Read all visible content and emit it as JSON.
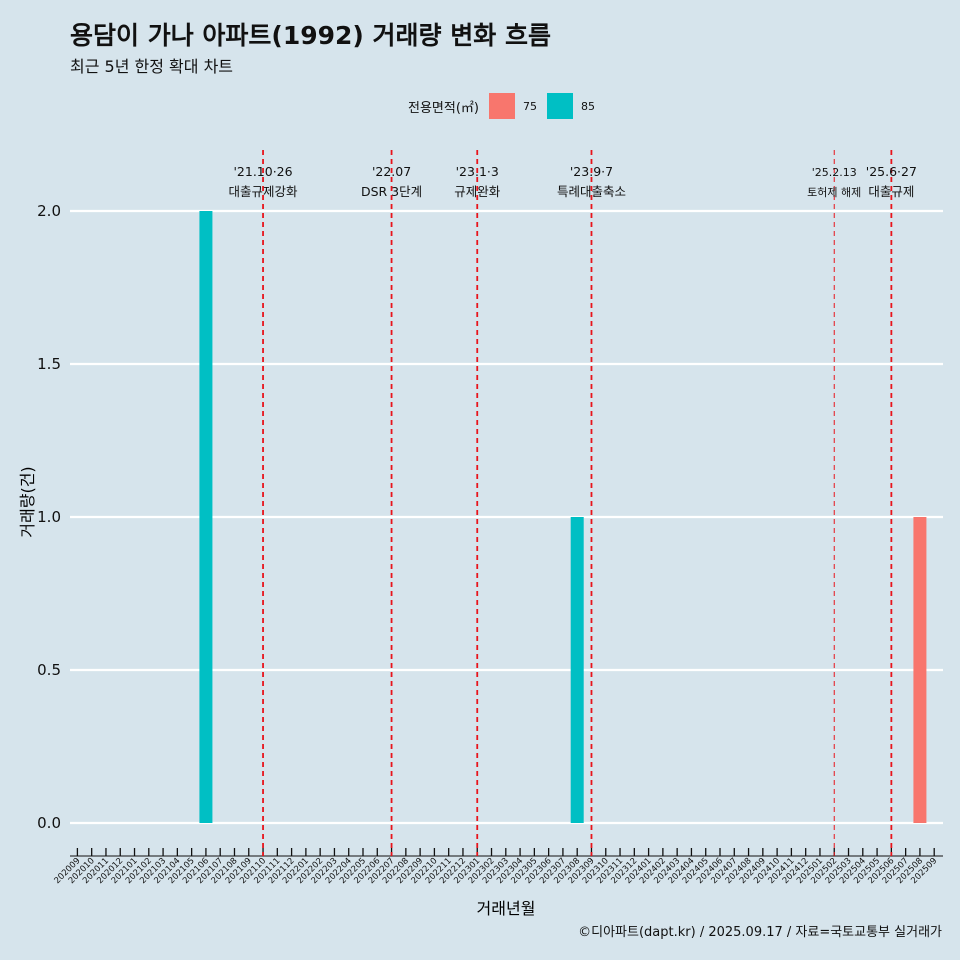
{
  "title": "용담이 가나 아파트(1992) 거래량 변화 흐름",
  "subtitle": "최근 5년 한정 확대 차트",
  "caption": "©디아파트(dapt.kr) / 2025.09.17 / 자료=국토교통부 실거래가",
  "legend": {
    "title": "전용면적(㎡)",
    "items": [
      {
        "label": "75",
        "color": "#f8766d"
      },
      {
        "label": "85",
        "color": "#00bfc4"
      }
    ]
  },
  "chart_data": {
    "type": "bar",
    "xlabel": "거래년월",
    "ylabel": "거래량(건)",
    "ylim": [
      0,
      2
    ],
    "yticks": [
      "0.0",
      "0.5",
      "1.0",
      "1.5",
      "2.0"
    ],
    "ytick_values": [
      0,
      0.5,
      1,
      1.5,
      2
    ],
    "categories": [
      "202009",
      "202010",
      "202011",
      "202012",
      "202101",
      "202102",
      "202103",
      "202104",
      "202105",
      "202106",
      "202107",
      "202108",
      "202109",
      "202110",
      "202111",
      "202112",
      "202201",
      "202202",
      "202203",
      "202204",
      "202205",
      "202206",
      "202207",
      "202208",
      "202209",
      "202210",
      "202211",
      "202212",
      "202301",
      "202302",
      "202303",
      "202304",
      "202305",
      "202306",
      "202307",
      "202308",
      "202309",
      "202310",
      "202311",
      "202312",
      "202401",
      "202402",
      "202403",
      "202404",
      "202405",
      "202406",
      "202407",
      "202408",
      "202409",
      "202410",
      "202411",
      "202412",
      "202501",
      "202502",
      "202503",
      "202504",
      "202505",
      "202506",
      "202507",
      "202508",
      "202509"
    ],
    "series": [
      {
        "name": "75",
        "color": "#f8766d",
        "points": [
          {
            "x": "202508",
            "y": 1
          }
        ]
      },
      {
        "name": "85",
        "color": "#00bfc4",
        "points": [
          {
            "x": "202106",
            "y": 2
          },
          {
            "x": "202308",
            "y": 1
          }
        ]
      }
    ],
    "events": [
      {
        "x": "202110",
        "date": "'21.10·26",
        "label": "대출규제강화"
      },
      {
        "x": "202207",
        "date": "'22.07",
        "label": "DSR 3단계"
      },
      {
        "x": "202301",
        "date": "'23.1·3",
        "label": "규제완화"
      },
      {
        "x": "202309",
        "date": "'23.9·7",
        "label": "특례대출축소"
      },
      {
        "x": "202502",
        "date": "'25.2.13",
        "label": "토허제 해제"
      },
      {
        "x": "202506",
        "date": "'25.6·27",
        "label": "대출규제"
      }
    ]
  }
}
